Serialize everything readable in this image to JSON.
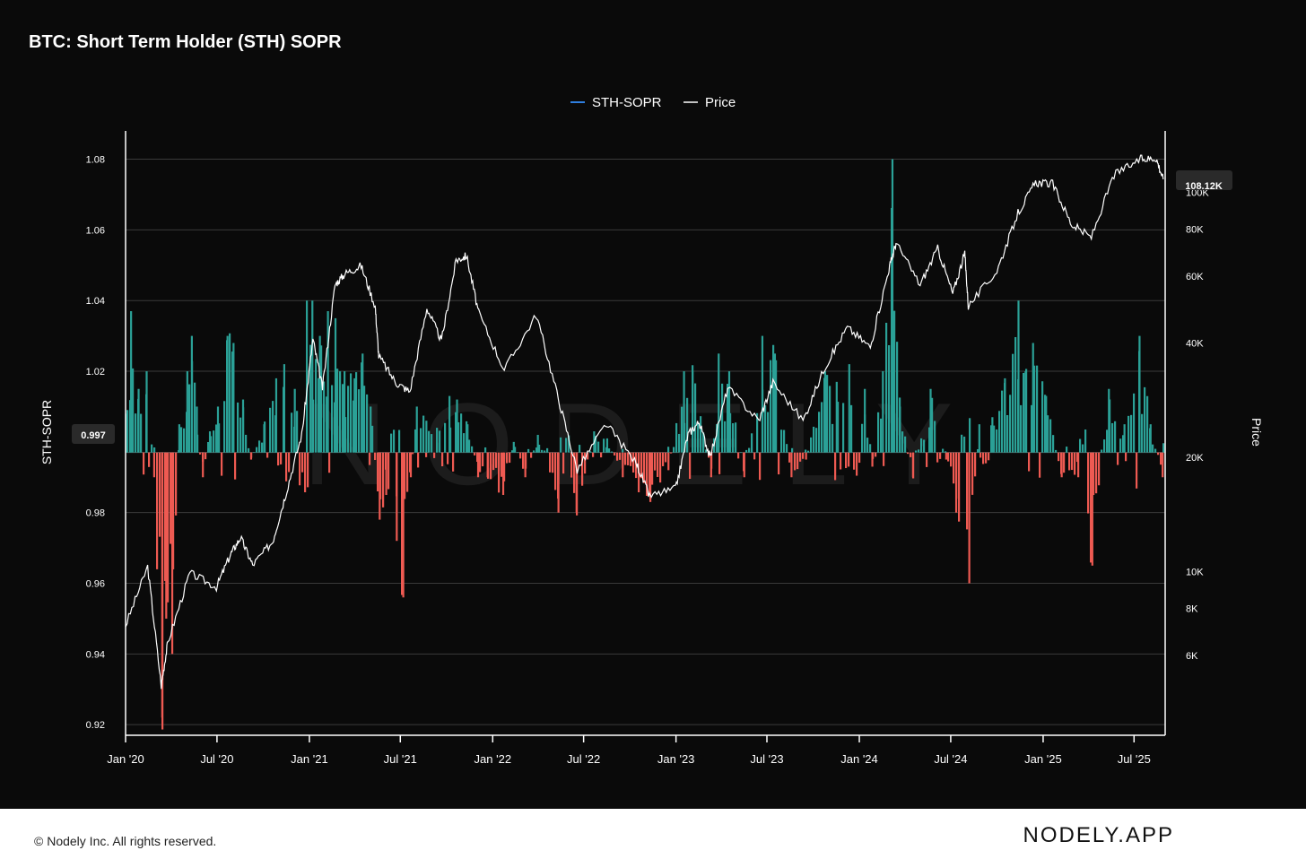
{
  "title": "BTC: Short Term Holder (STH) SOPR",
  "footer": {
    "copyright": "© Nodely Inc. All rights reserved.",
    "brand": "NODELY.APP"
  },
  "watermark": "NODELY",
  "colors": {
    "background": "#0a0a0a",
    "positive": "#2ba197",
    "negative": "#ee5a52",
    "price": "#ffffff",
    "legend_sopr": "#2f7fe0",
    "grid": "#3a3a3a"
  },
  "chart_data": {
    "type": "bar",
    "title": "BTC: Short Term Holder (STH) SOPR",
    "legend": {
      "placement": "top-center",
      "entries": [
        {
          "name": "STH-SOPR",
          "color": "#2f7fe0"
        },
        {
          "name": "Price",
          "color": "#ffffff"
        }
      ]
    },
    "y_left": {
      "label": "STH-SOPR",
      "ticks": [
        "1.08",
        "1.06",
        "1.04",
        "1.02",
        "0.98",
        "0.96",
        "0.94",
        "0.92"
      ],
      "range": [
        0.917,
        1.088
      ],
      "baseline": 0.997,
      "baseline_label": "0.997"
    },
    "y_right": {
      "label": "Price",
      "scale": "log",
      "ticks": [
        "100K",
        "80K",
        "60K",
        "40K",
        "20K",
        "10K",
        "8K",
        "6K"
      ],
      "last_value_label": "108.12K"
    },
    "x_labels": [
      "Jan '20",
      "Jul '20",
      "Jan '21",
      "Jul '21",
      "Jan '22",
      "Jul '22",
      "Jan '23",
      "Jul '23",
      "Jan '24",
      "Jul '24",
      "Jan '25",
      "Jul '25"
    ],
    "x_range": [
      "2020-01-01",
      "2025-09-01"
    ],
    "grid": true,
    "series": [
      {
        "name": "STH-SOPR",
        "type": "bar",
        "points": [
          [
            "2020-01-01",
            1.008
          ],
          [
            "2020-01-10",
            1.037
          ],
          [
            "2020-01-25",
            1.015
          ],
          [
            "2020-02-10",
            1.02
          ],
          [
            "2020-02-25",
            0.99
          ],
          [
            "2020-03-12",
            0.922
          ],
          [
            "2020-03-20",
            0.95
          ],
          [
            "2020-04-01",
            0.94
          ],
          [
            "2020-04-15",
            1.005
          ],
          [
            "2020-05-01",
            1.02
          ],
          [
            "2020-05-10",
            1.03
          ],
          [
            "2020-05-20",
            1.01
          ],
          [
            "2020-06-01",
            0.99
          ],
          [
            "2020-06-15",
            1.003
          ],
          [
            "2020-07-01",
            1.01
          ],
          [
            "2020-07-20",
            1.03
          ],
          [
            "2020-08-01",
            1.028
          ],
          [
            "2020-08-20",
            1.012
          ],
          [
            "2020-09-05",
            0.995
          ],
          [
            "2020-10-01",
            1.005
          ],
          [
            "2020-10-25",
            1.018
          ],
          [
            "2020-11-10",
            1.022
          ],
          [
            "2020-12-01",
            1.015
          ],
          [
            "2020-12-25",
            1.04
          ],
          [
            "2021-01-05",
            1.04
          ],
          [
            "2021-01-20",
            1.03
          ],
          [
            "2021-02-05",
            1.037
          ],
          [
            "2021-02-20",
            1.035
          ],
          [
            "2021-03-10",
            1.02
          ],
          [
            "2021-03-30",
            1.018
          ],
          [
            "2021-04-15",
            1.025
          ],
          [
            "2021-05-01",
            1.01
          ],
          [
            "2021-05-19",
            0.978
          ],
          [
            "2021-06-01",
            0.985
          ],
          [
            "2021-06-22",
            0.972
          ],
          [
            "2021-07-05",
            0.956
          ],
          [
            "2021-07-20",
            0.99
          ],
          [
            "2021-08-01",
            1.01
          ],
          [
            "2021-08-20",
            1.006
          ],
          [
            "2021-09-10",
            1.004
          ],
          [
            "2021-10-05",
            1.013
          ],
          [
            "2021-10-20",
            1.012
          ],
          [
            "2021-11-10",
            1.005
          ],
          [
            "2021-12-01",
            0.99
          ],
          [
            "2021-12-20",
            0.99
          ],
          [
            "2022-01-20",
            0.985
          ],
          [
            "2022-02-10",
            1.0
          ],
          [
            "2022-03-05",
            0.99
          ],
          [
            "2022-03-30",
            1.002
          ],
          [
            "2022-05-10",
            0.98
          ],
          [
            "2022-06-15",
            0.98
          ],
          [
            "2022-07-20",
            1.003
          ],
          [
            "2022-08-15",
            1.001
          ],
          [
            "2022-09-15",
            0.99
          ],
          [
            "2022-11-09",
            0.983
          ],
          [
            "2022-12-15",
            0.992
          ],
          [
            "2023-01-15",
            1.02
          ],
          [
            "2023-02-01",
            1.02
          ],
          [
            "2023-03-10",
            0.99
          ],
          [
            "2023-03-25",
            1.025
          ],
          [
            "2023-04-15",
            1.02
          ],
          [
            "2023-05-15",
            0.99
          ],
          [
            "2023-06-20",
            1.03
          ],
          [
            "2023-07-15",
            1.025
          ],
          [
            "2023-08-17",
            0.99
          ],
          [
            "2023-09-15",
            0.995
          ],
          [
            "2023-10-23",
            1.02
          ],
          [
            "2023-11-15",
            1.017
          ],
          [
            "2023-12-10",
            1.022
          ],
          [
            "2024-01-10",
            1.015
          ],
          [
            "2024-01-25",
            0.993
          ],
          [
            "2024-02-15",
            1.02
          ],
          [
            "2024-03-05",
            1.08
          ],
          [
            "2024-03-20",
            1.01
          ],
          [
            "2024-04-15",
            0.99
          ],
          [
            "2024-05-20",
            1.015
          ],
          [
            "2024-06-20",
            0.995
          ],
          [
            "2024-07-10",
            0.98
          ],
          [
            "2024-08-05",
            0.96
          ],
          [
            "2024-08-25",
            1.005
          ],
          [
            "2024-09-20",
            1.007
          ],
          [
            "2024-10-15",
            1.018
          ],
          [
            "2024-11-11",
            1.04
          ],
          [
            "2024-11-25",
            1.02
          ],
          [
            "2024-12-10",
            1.028
          ],
          [
            "2025-01-05",
            1.013
          ],
          [
            "2025-02-05",
            0.99
          ],
          [
            "2025-03-10",
            0.99
          ],
          [
            "2025-04-07",
            0.965
          ],
          [
            "2025-05-10",
            1.015
          ],
          [
            "2025-06-10",
            1.005
          ],
          [
            "2025-07-10",
            1.03
          ],
          [
            "2025-08-01",
            1.005
          ],
          [
            "2025-08-25",
            0.99
          ]
        ]
      },
      {
        "name": "Price",
        "type": "line",
        "points": [
          [
            "2020-01-01",
            7200
          ],
          [
            "2020-02-14",
            10300
          ],
          [
            "2020-03-12",
            5000
          ],
          [
            "2020-03-25",
            6500
          ],
          [
            "2020-05-08",
            9900
          ],
          [
            "2020-06-30",
            9100
          ],
          [
            "2020-07-28",
            11100
          ],
          [
            "2020-08-17",
            12300
          ],
          [
            "2020-09-10",
            10400
          ],
          [
            "2020-10-20",
            12000
          ],
          [
            "2020-11-15",
            16000
          ],
          [
            "2020-12-17",
            23000
          ],
          [
            "2021-01-08",
            41000
          ],
          [
            "2021-01-27",
            30500
          ],
          [
            "2021-02-21",
            57000
          ],
          [
            "2021-03-13",
            61000
          ],
          [
            "2021-04-14",
            64000
          ],
          [
            "2021-05-12",
            50000
          ],
          [
            "2021-05-19",
            37000
          ],
          [
            "2021-06-22",
            31500
          ],
          [
            "2021-07-20",
            29800
          ],
          [
            "2021-08-23",
            49500
          ],
          [
            "2021-09-21",
            40500
          ],
          [
            "2021-10-20",
            66000
          ],
          [
            "2021-11-10",
            68000
          ],
          [
            "2021-12-04",
            48000
          ],
          [
            "2022-01-24",
            34000
          ],
          [
            "2022-03-29",
            47500
          ],
          [
            "2022-05-12",
            28500
          ],
          [
            "2022-06-18",
            18500
          ],
          [
            "2022-08-15",
            24500
          ],
          [
            "2022-10-15",
            19200
          ],
          [
            "2022-11-09",
            15800
          ],
          [
            "2022-12-31",
            16500
          ],
          [
            "2023-01-25",
            23000
          ],
          [
            "2023-02-16",
            24800
          ],
          [
            "2023-03-10",
            20000
          ],
          [
            "2023-04-14",
            30500
          ],
          [
            "2023-06-15",
            25000
          ],
          [
            "2023-07-13",
            31500
          ],
          [
            "2023-09-11",
            25000
          ],
          [
            "2023-10-24",
            34500
          ],
          [
            "2023-12-08",
            44000
          ],
          [
            "2024-01-23",
            39000
          ],
          [
            "2024-02-28",
            62000
          ],
          [
            "2024-03-14",
            73500
          ],
          [
            "2024-05-01",
            57000
          ],
          [
            "2024-06-05",
            71000
          ],
          [
            "2024-07-05",
            54000
          ],
          [
            "2024-07-29",
            69000
          ],
          [
            "2024-08-05",
            50000
          ],
          [
            "2024-10-01",
            62000
          ],
          [
            "2024-11-12",
            88000
          ],
          [
            "2024-12-17",
            106000
          ],
          [
            "2025-01-20",
            105000
          ],
          [
            "2025-02-27",
            82000
          ],
          [
            "2025-04-07",
            76000
          ],
          [
            "2025-05-22",
            111000
          ],
          [
            "2025-07-14",
            122000
          ],
          [
            "2025-08-14",
            123000
          ],
          [
            "2025-08-28",
            108120
          ]
        ]
      }
    ]
  }
}
